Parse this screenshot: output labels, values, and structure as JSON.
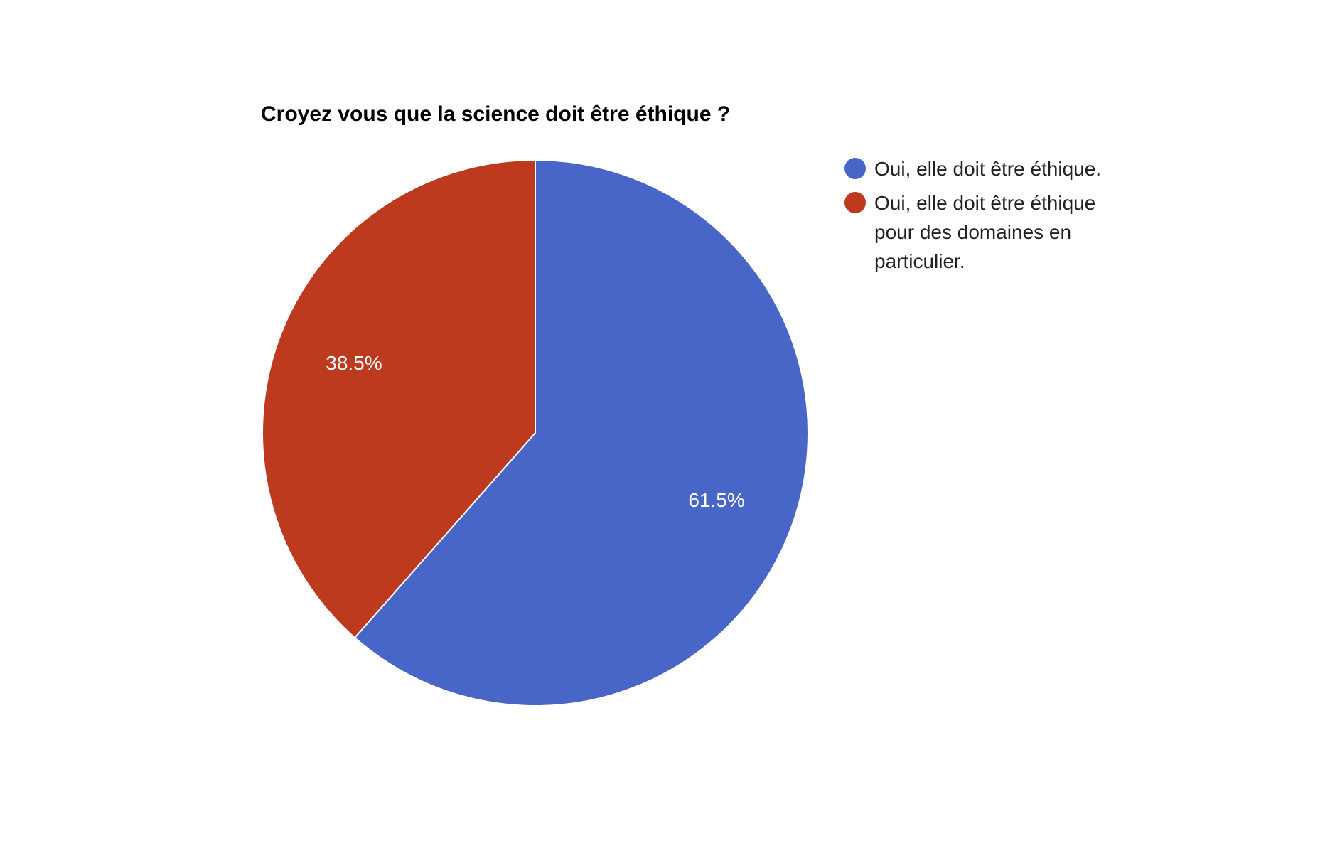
{
  "chart_data": {
    "type": "pie",
    "title": "Croyez vous que la science doit être éthique ?",
    "slices": [
      {
        "label": "Oui, elle doit être éthique.",
        "label_lines": [
          "Oui, elle doit être éthique."
        ],
        "value": 61.5,
        "display": "61.5%",
        "color": "#4866c8"
      },
      {
        "label": "Oui, elle doit être éthique pour des domaines en particulier.",
        "label_lines": [
          "Oui, elle doit être éthique",
          "pour des domaines en",
          "particulier."
        ],
        "value": 38.5,
        "display": "38.5%",
        "color": "#bd3a1e"
      }
    ],
    "start_angle": "12 o'clock",
    "direction": "clockwise",
    "legend_position": "right"
  }
}
